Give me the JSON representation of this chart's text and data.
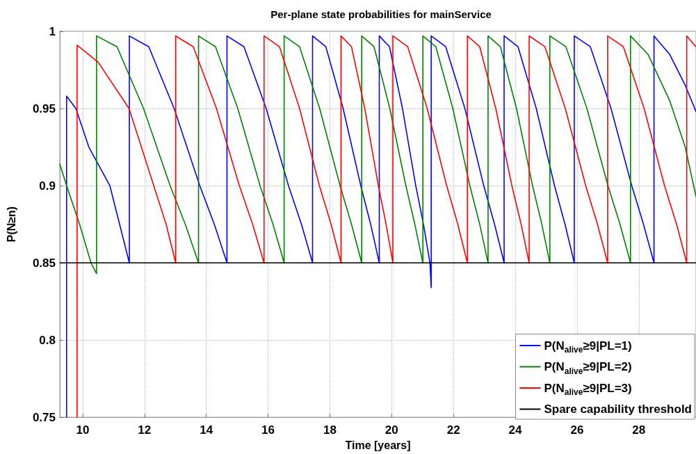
{
  "chart_data": {
    "type": "line",
    "title": "Per-plane state probabilities for mainService",
    "xlabel": "Time [years]",
    "ylabel": "P(N≥n)",
    "xlim": [
      9.26,
      29.85
    ],
    "xticks": [
      10,
      12,
      14,
      16,
      18,
      20,
      22,
      24,
      26,
      28
    ],
    "ylim": [
      0.75,
      1
    ],
    "yticks": [
      0.75,
      0.8,
      0.85,
      0.9,
      0.95,
      1
    ],
    "grid": true,
    "legend": "bottom right",
    "marker": "none",
    "line_style": "solid",
    "series": [
      {
        "name": "P(N$_{alive}$≥9|PL=1)",
        "color": "#0000ff",
        "x": [
          9.48,
          9.48,
          9.78,
          10.2,
          10.88,
          11.51,
          11.51,
          12.14,
          12.96,
          13.79,
          14.26,
          14.67,
          14.67,
          15.22,
          15.94,
          16.66,
          17.08,
          17.44,
          17.44,
          17.87,
          18.43,
          19.0,
          19.32,
          19.6,
          19.6,
          19.93,
          20.35,
          20.78,
          21.03,
          21.24,
          21.28,
          21.28,
          21.75,
          22.37,
          22.98,
          23.33,
          23.64,
          23.64,
          24.09,
          24.68,
          25.27,
          25.61,
          25.91,
          25.91,
          26.43,
          27.1,
          27.77,
          28.15,
          28.49,
          28.49,
          29.0,
          29.5,
          29.85
        ],
        "values": [
          0.75,
          0.958,
          0.95,
          0.925,
          0.9,
          0.85,
          0.997,
          0.99,
          0.95,
          0.9,
          0.875,
          0.85,
          0.997,
          0.99,
          0.95,
          0.9,
          0.875,
          0.85,
          0.997,
          0.99,
          0.95,
          0.9,
          0.875,
          0.85,
          0.997,
          0.99,
          0.95,
          0.9,
          0.875,
          0.85,
          0.834,
          0.997,
          0.99,
          0.95,
          0.9,
          0.875,
          0.85,
          0.997,
          0.99,
          0.95,
          0.9,
          0.875,
          0.85,
          0.997,
          0.99,
          0.95,
          0.9,
          0.875,
          0.85,
          0.997,
          0.985,
          0.965,
          0.948
        ]
      },
      {
        "name": "P(N$_{alive}$≥9|PL=2)",
        "color": "#008000",
        "x": [
          9.26,
          9.48,
          9.9,
          10.27,
          10.45,
          10.45,
          11.11,
          11.97,
          12.83,
          13.32,
          13.75,
          13.75,
          14.3,
          15.02,
          15.74,
          16.16,
          16.52,
          16.52,
          17.02,
          17.67,
          18.33,
          18.7,
          19.03,
          19.03,
          19.43,
          19.94,
          20.46,
          20.75,
          21.01,
          21.01,
          21.43,
          21.98,
          22.53,
          22.85,
          23.12,
          23.12,
          23.52,
          24.04,
          24.56,
          24.86,
          25.12,
          25.12,
          25.64,
          26.32,
          27.0,
          27.39,
          27.73,
          27.73,
          28.3,
          29.0,
          29.5,
          29.85
        ],
        "values": [
          0.914,
          0.9,
          0.875,
          0.85,
          0.843,
          0.997,
          0.99,
          0.95,
          0.9,
          0.875,
          0.85,
          0.997,
          0.99,
          0.95,
          0.9,
          0.875,
          0.85,
          0.997,
          0.99,
          0.95,
          0.9,
          0.875,
          0.85,
          0.997,
          0.99,
          0.95,
          0.9,
          0.875,
          0.85,
          0.997,
          0.99,
          0.95,
          0.9,
          0.875,
          0.85,
          0.997,
          0.99,
          0.95,
          0.9,
          0.875,
          0.85,
          0.997,
          0.99,
          0.95,
          0.9,
          0.875,
          0.85,
          0.997,
          0.985,
          0.955,
          0.925,
          0.893
        ]
      },
      {
        "name": "P(N$_{alive}$≥9|PL=3)",
        "color": "#ff0000",
        "x": [
          9.82,
          9.82,
          10.5,
          11.5,
          12.3,
          12.7,
          13.01,
          13.01,
          13.58,
          14.33,
          15.07,
          15.5,
          15.87,
          15.87,
          16.37,
          17.02,
          17.66,
          18.04,
          18.36,
          18.36,
          18.7,
          19.13,
          19.57,
          19.82,
          20.04,
          20.04,
          20.52,
          21.15,
          21.78,
          22.14,
          22.45,
          22.45,
          22.85,
          23.37,
          23.89,
          24.19,
          24.45,
          24.45,
          24.96,
          25.62,
          26.28,
          26.66,
          26.99,
          26.99,
          27.5,
          28.17,
          28.83,
          29.22,
          29.55,
          29.55,
          29.85
        ],
        "values": [
          0.75,
          0.991,
          0.98,
          0.95,
          0.9,
          0.875,
          0.85,
          0.997,
          0.99,
          0.95,
          0.9,
          0.875,
          0.85,
          0.997,
          0.99,
          0.95,
          0.9,
          0.875,
          0.85,
          0.997,
          0.99,
          0.95,
          0.9,
          0.875,
          0.85,
          0.997,
          0.99,
          0.95,
          0.9,
          0.875,
          0.85,
          0.997,
          0.99,
          0.95,
          0.9,
          0.875,
          0.85,
          0.997,
          0.99,
          0.95,
          0.9,
          0.875,
          0.85,
          0.997,
          0.99,
          0.95,
          0.9,
          0.875,
          0.85,
          0.997,
          0.99
        ]
      }
    ],
    "ref_lines": [
      {
        "axis": "y",
        "value": 0.85,
        "label": "Spare capability threshold",
        "color": "#000000",
        "line_style": "solid"
      }
    ]
  }
}
